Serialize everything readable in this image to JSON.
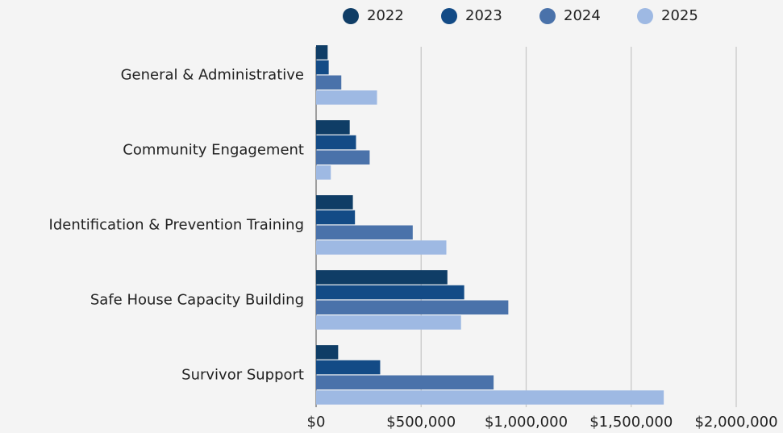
{
  "chart_data": {
    "type": "hbar",
    "categories": [
      "General & Administrative",
      "Community Engagement",
      "Identification & Prevention Training",
      "Safe House Capacity Building",
      "Survivor Support"
    ],
    "series": [
      {
        "name": "2022",
        "color": "#0f3d66",
        "values": [
          55000,
          160000,
          175000,
          625000,
          105000
        ]
      },
      {
        "name": "2023",
        "color": "#134b86",
        "values": [
          60000,
          190000,
          185000,
          705000,
          305000
        ]
      },
      {
        "name": "2024",
        "color": "#4a72aa",
        "values": [
          120000,
          255000,
          460000,
          915000,
          845000
        ]
      },
      {
        "name": "2025",
        "color": "#9eb9e3",
        "values": [
          290000,
          70000,
          620000,
          690000,
          1655000
        ]
      }
    ],
    "xlim": [
      0,
      2000000
    ],
    "xticks": [
      {
        "value": 0,
        "label": "$0"
      },
      {
        "value": 500000,
        "label": "$500,000"
      },
      {
        "value": 1000000,
        "label": "$1,000,000"
      },
      {
        "value": 1500000,
        "label": "$1,500,000"
      },
      {
        "value": 2000000,
        "label": "$2,000,000"
      }
    ],
    "grid": true,
    "legend": "top"
  }
}
